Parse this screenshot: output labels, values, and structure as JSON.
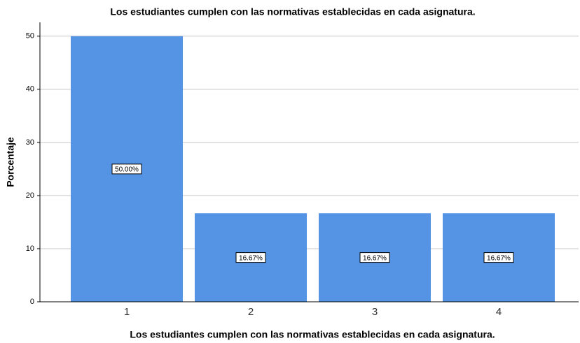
{
  "chart_data": {
    "type": "bar",
    "title": "Los estudiantes cumplen con las normativas establecidas en cada asignatura.",
    "x_label": "Los estudiantes cumplen con las normativas establecidas en cada asignatura.",
    "y_label": "Porcentaje",
    "categories": [
      "1",
      "2",
      "3",
      "4"
    ],
    "values": [
      50,
      16.67,
      16.67,
      16.67
    ],
    "value_labels": [
      "50.00%",
      "16.67%",
      "16.67%",
      "16.67%"
    ],
    "color": "#5594e5",
    "ylim": [
      0,
      52.6
    ],
    "yticks": [
      0,
      10,
      20,
      30,
      40,
      50
    ],
    "grid": true
  }
}
